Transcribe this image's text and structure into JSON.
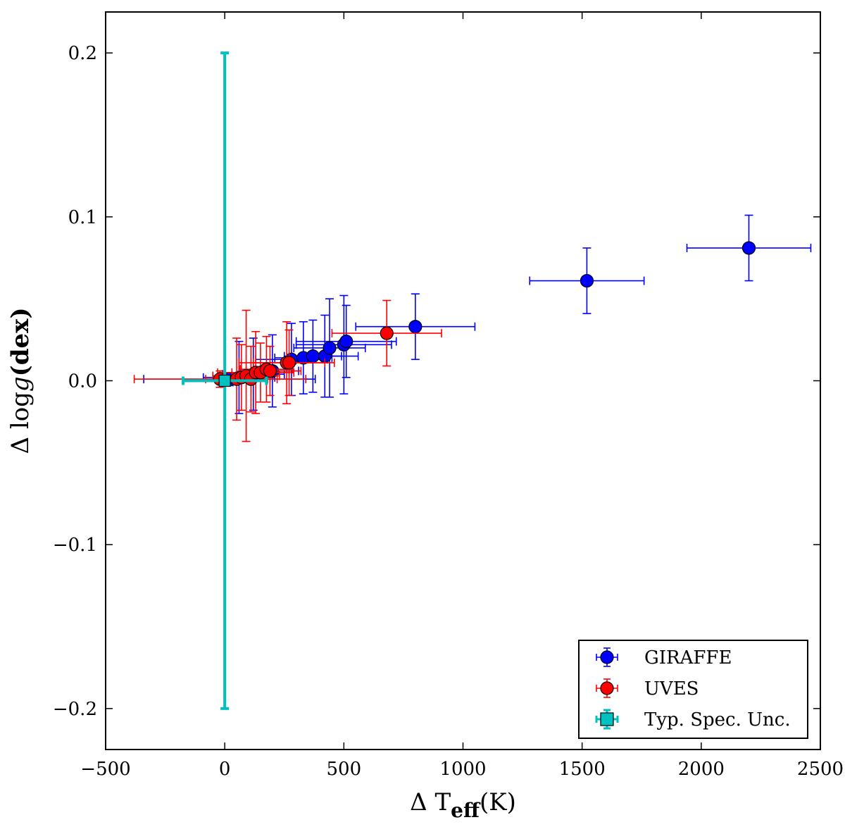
{
  "chart_data": {
    "type": "scatter",
    "title": "",
    "xlabel": "Δ T",
    "xlabel_sub": "eff",
    "xlabel_unit": "(K)",
    "ylabel_prefix": "Δ log",
    "ylabel_var": "g",
    "ylabel_unit": "(dex)",
    "xlim": [
      -500,
      2500
    ],
    "ylim": [
      -0.225,
      0.225
    ],
    "x_ticks": [
      -500,
      0,
      500,
      1000,
      1500,
      2000,
      2500
    ],
    "x_tick_labels": [
      "−500",
      "0",
      "500",
      "1000",
      "1500",
      "2000",
      "2500"
    ],
    "y_ticks": [
      -0.2,
      -0.1,
      0.0,
      0.1,
      0.2
    ],
    "y_tick_labels": [
      "−0.2",
      "−0.1",
      "0.0",
      "0.1",
      "0.2"
    ],
    "grid": false,
    "legend_position": "bottom-right",
    "series": [
      {
        "name": "GIRAFFE",
        "color": "#0000ff",
        "marker": "circle",
        "points": [
          {
            "x": 20,
            "y": 0.001,
            "xerr": 360,
            "yerr": 0.004
          },
          {
            "x": 60,
            "y": 0.002,
            "xerr": 150,
            "yerr": 0.022
          },
          {
            "x": 120,
            "y": 0.004,
            "xerr": 130,
            "yerr": 0.022
          },
          {
            "x": 200,
            "y": 0.006,
            "xerr": 110,
            "yerr": 0.022
          },
          {
            "x": 280,
            "y": 0.013,
            "xerr": 150,
            "yerr": 0.022
          },
          {
            "x": 330,
            "y": 0.014,
            "xerr": 120,
            "yerr": 0.022
          },
          {
            "x": 370,
            "y": 0.015,
            "xerr": 120,
            "yerr": 0.022
          },
          {
            "x": 420,
            "y": 0.015,
            "xerr": 140,
            "yerr": 0.025
          },
          {
            "x": 440,
            "y": 0.02,
            "xerr": 150,
            "yerr": 0.03
          },
          {
            "x": 500,
            "y": 0.022,
            "xerr": 200,
            "yerr": 0.03
          },
          {
            "x": 510,
            "y": 0.024,
            "xerr": 210,
            "yerr": 0.022
          },
          {
            "x": 800,
            "y": 0.033,
            "xerr": 250,
            "yerr": 0.02
          },
          {
            "x": 1520,
            "y": 0.061,
            "xerr": 240,
            "yerr": 0.02
          },
          {
            "x": 2200,
            "y": 0.081,
            "xerr": 260,
            "yerr": 0.02
          }
        ]
      },
      {
        "name": "UVES",
        "color": "#ff0000",
        "marker": "circle",
        "points": [
          {
            "x": -20,
            "y": 0.001,
            "xerr": 360,
            "yerr": 0.005
          },
          {
            "x": 50,
            "y": 0.001,
            "xerr": 130,
            "yerr": 0.025
          },
          {
            "x": 70,
            "y": 0.002,
            "xerr": 120,
            "yerr": 0.02
          },
          {
            "x": 90,
            "y": 0.003,
            "xerr": 140,
            "yerr": 0.04
          },
          {
            "x": 110,
            "y": 0.001,
            "xerr": 110,
            "yerr": 0.02
          },
          {
            "x": 130,
            "y": 0.005,
            "xerr": 160,
            "yerr": 0.025
          },
          {
            "x": 150,
            "y": 0.005,
            "xerr": 120,
            "yerr": 0.018
          },
          {
            "x": 175,
            "y": 0.007,
            "xerr": 110,
            "yerr": 0.02
          },
          {
            "x": 190,
            "y": 0.006,
            "xerr": 130,
            "yerr": 0.015
          },
          {
            "x": 260,
            "y": 0.011,
            "xerr": 200,
            "yerr": 0.025
          },
          {
            "x": 270,
            "y": 0.011,
            "xerr": 150,
            "yerr": 0.02
          },
          {
            "x": 680,
            "y": 0.029,
            "xerr": 230,
            "yerr": 0.02
          }
        ]
      },
      {
        "name": "Typ. Spec. Unc.",
        "color": "#00c0c0",
        "marker": "square",
        "points": [
          {
            "x": 0,
            "y": 0.0,
            "xerr": 175,
            "yerr": 0.2
          }
        ]
      }
    ]
  }
}
